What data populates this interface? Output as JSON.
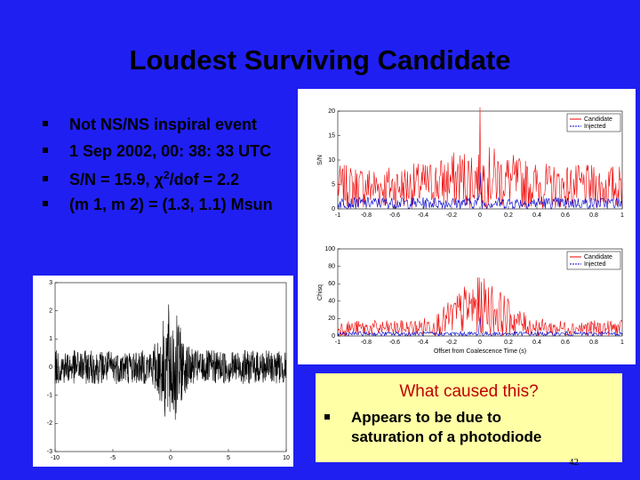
{
  "title": "Loudest Surviving Candidate",
  "bullets": [
    {
      "parts": [
        "Not NS/NS inspiral event"
      ]
    },
    {
      "parts": [
        "1 Sep 2002, 00: 38: 33 UTC"
      ]
    },
    {
      "parts": [
        "S/N = 15.9, χ",
        "2",
        "/dof = 2.2"
      ]
    },
    {
      "parts": [
        "(m 1, m 2) = (1.3, 1.1) Msun"
      ]
    }
  ],
  "plots": [
    {
      "ylabel": "S/N",
      "yticks": [
        "20",
        "15",
        "10",
        "5",
        "0"
      ],
      "xticks": [
        "-1",
        "-0.8",
        "-0.6",
        "-0.4",
        "-0.2",
        "0",
        "0.2",
        "0.4",
        "0.6",
        "0.8",
        "1"
      ],
      "legend": [
        "Candidate",
        "Injected"
      ]
    },
    {
      "ylabel": "Chisq",
      "yticks": [
        "100",
        "80",
        "60",
        "40",
        "20",
        "0"
      ],
      "xticks": [
        "-1",
        "-0.8",
        "-0.6",
        "-0.4",
        "-0.2",
        "0",
        "0.2",
        "0.4",
        "0.6",
        "0.8",
        "1"
      ],
      "legend": [
        "Candidate",
        "Injected"
      ],
      "xlabel": "Offset from Coalescence Time (s)"
    },
    {
      "yticks": [
        "3",
        "2",
        "1",
        "0",
        "-1",
        "-2",
        "-3"
      ],
      "xticks": [
        "-10",
        "-5",
        "0",
        "5",
        "10"
      ]
    }
  ],
  "callout": {
    "heading": "What caused this?",
    "lines": [
      "Appears to be due to",
      "saturation of a photodiode"
    ]
  },
  "page_number": "42"
}
